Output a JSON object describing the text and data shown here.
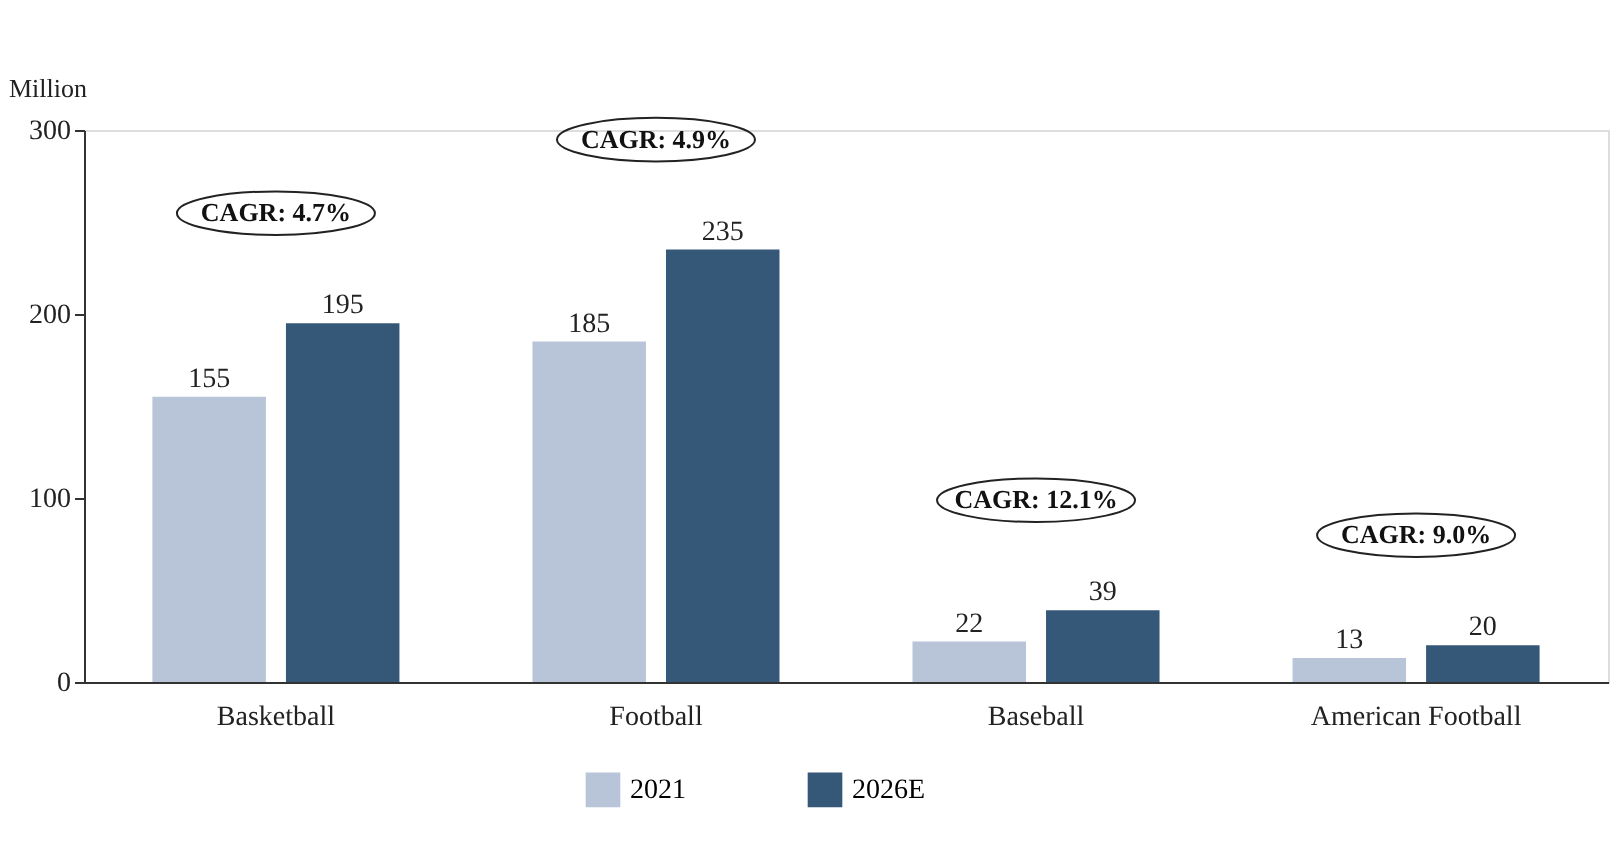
{
  "chart_data": {
    "type": "bar",
    "ylabel": "Million",
    "categories": [
      "Basketball",
      "Football",
      "Baseball",
      "American Football"
    ],
    "series": [
      {
        "name": "2021",
        "color": "#b8c5d8",
        "values": [
          155,
          185,
          22,
          13
        ]
      },
      {
        "name": "2026E",
        "color": "#355878",
        "values": [
          195,
          235,
          39,
          20
        ]
      }
    ],
    "ylim": [
      0,
      300
    ],
    "yticks": [
      0,
      100,
      200,
      300
    ],
    "grid": false,
    "legend": "bottom",
    "data_labels": true,
    "annotations": [
      "CAGR: 4.7%",
      "CAGR: 4.9%",
      "CAGR: 12.1%",
      "CAGR: 9.0%"
    ]
  }
}
